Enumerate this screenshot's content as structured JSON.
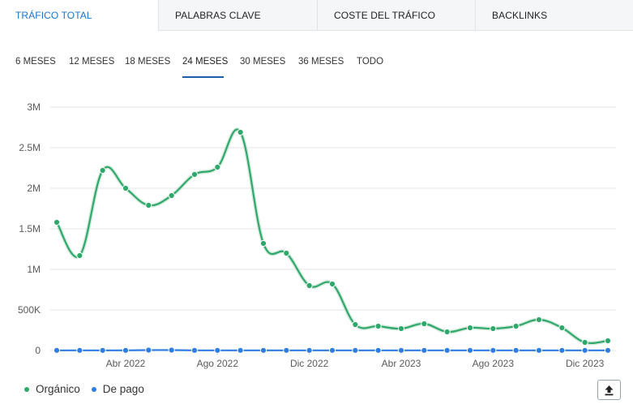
{
  "tabs": [
    {
      "label": "TRÁFICO TOTAL",
      "active": true
    },
    {
      "label": "PALABRAS CLAVE",
      "active": false
    },
    {
      "label": "COSTE DEL TRÁFICO",
      "active": false
    },
    {
      "label": "BACKLINKS",
      "active": false
    }
  ],
  "periods": [
    {
      "label": "6 MESES",
      "active": false
    },
    {
      "label": "12 MESES",
      "active": false
    },
    {
      "label": "18 MESES",
      "active": false
    },
    {
      "label": "24 MESES",
      "active": true
    },
    {
      "label": "30 MESES",
      "active": false
    },
    {
      "label": "36 MESES",
      "active": false
    },
    {
      "label": "TODO",
      "active": false
    }
  ],
  "colors": {
    "organic": "#2fa96b",
    "paid": "#2f7de1",
    "accent": "#1a73c9",
    "grid": "#e2e5e9"
  },
  "export_icon": "upload-icon",
  "chart_data": {
    "type": "line",
    "x_tick_labels": [
      "Abr 2022",
      "Ago 2022",
      "Dic 2022",
      "Abr 2023",
      "Ago 2023",
      "Dic 2023"
    ],
    "y_tick_labels": [
      "0",
      "500K",
      "1M",
      "1.5M",
      "2M",
      "2.5M",
      "3M"
    ],
    "ylim": [
      0,
      3000000
    ],
    "grid": true,
    "legend": "bottom-left",
    "x": [
      "2022-01-01",
      "2022-02-01",
      "2022-03-01",
      "2022-04-01",
      "2022-05-01",
      "2022-06-01",
      "2022-07-01",
      "2022-08-01",
      "2022-09-01",
      "2022-10-01",
      "2022-11-01",
      "2022-12-01",
      "2023-01-01",
      "2023-02-01",
      "2023-03-01",
      "2023-04-01",
      "2023-05-01",
      "2023-06-01",
      "2023-07-01",
      "2023-08-01",
      "2023-09-01",
      "2023-10-01",
      "2023-11-01",
      "2023-12-01",
      "2024-01-01"
    ],
    "series": [
      {
        "name": "Orgánico",
        "color": "#2fa96b",
        "values": [
          1580000,
          1170000,
          2220000,
          2000000,
          1790000,
          1910000,
          2170000,
          2260000,
          2690000,
          1320000,
          1200000,
          800000,
          820000,
          320000,
          300000,
          270000,
          330000,
          230000,
          280000,
          270000,
          300000,
          380000,
          280000,
          100000,
          120000
        ]
      },
      {
        "name": "De pago",
        "color": "#2f7de1",
        "values": [
          2000,
          2000,
          2000,
          2000,
          5000,
          5000,
          2000,
          2000,
          2000,
          2000,
          2000,
          2000,
          2000,
          2000,
          2000,
          2000,
          2000,
          2000,
          2000,
          2000,
          2000,
          2000,
          2000,
          2000,
          2000
        ]
      }
    ]
  }
}
